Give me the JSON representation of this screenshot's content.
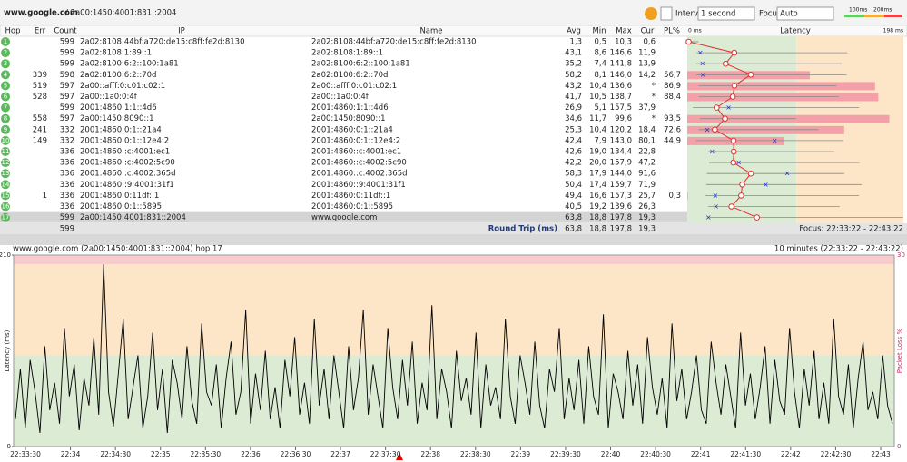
{
  "header": {
    "host": "www.google.com",
    "address": "/ 2a00:1450:4001:831::2004",
    "interval_label": "Interval",
    "interval": "1 second",
    "focus_label": "Focus",
    "focus": "Auto",
    "scale": [
      "100ms",
      "200ms"
    ]
  },
  "table": {
    "columns": [
      "Hop",
      "Err",
      "Count",
      "IP",
      "Name",
      "Avg",
      "Min",
      "Max",
      "Cur",
      "PL%",
      "Latency"
    ],
    "latency_scale": [
      "0 ms",
      "198 ms"
    ],
    "rows": [
      [
        1,
        null,
        599,
        "2a02:8108:44bf:a720:de15:c8ff:fe2d:8130",
        "2a02:8108:44bf:a720:de15:c8ff:fe2d:8130",
        "1,3",
        "0,5",
        "10,3",
        "0,6",
        null
      ],
      [
        2,
        null,
        599,
        "2a02:8108:1:89::1",
        "2a02:8108:1:89::1",
        "43,1",
        "8,6",
        "146,6",
        "11,9",
        null
      ],
      [
        3,
        null,
        599,
        "2a02:8100:6:2::100:1a81",
        "2a02:8100:6:2::100:1a81",
        "35,2",
        "7,4",
        "141,8",
        "13,9",
        null
      ],
      [
        4,
        339,
        598,
        "2a02:8100:6:2::70d",
        "2a02:8100:6:2::70d",
        "58,2",
        "8,1",
        "146,0",
        "14,2",
        "56,7"
      ],
      [
        5,
        519,
        597,
        "2a00::afff:0:c01:c02:1",
        "2a00::afff:0:c01:c02:1",
        "43,2",
        "10,4",
        "136,6",
        "*",
        "86,9"
      ],
      [
        6,
        528,
        597,
        "2a00::1a0:0:4f",
        "2a00::1a0:0:4f",
        "41,7",
        "10,5",
        "138,7",
        "*",
        "88,4"
      ],
      [
        7,
        null,
        599,
        "2001:4860:1:1::4d6",
        "2001:4860:1:1::4d6",
        "26,9",
        "5,1",
        "157,5",
        "37,9",
        null
      ],
      [
        8,
        558,
        597,
        "2a00:1450:8090::1",
        "2a00:1450:8090::1",
        "34,6",
        "11,7",
        "99,6",
        "*",
        "93,5"
      ],
      [
        9,
        241,
        332,
        "2001:4860:0:1::21a4",
        "2001:4860:0:1::21a4",
        "25,3",
        "10,4",
        "120,2",
        "18,4",
        "72,6"
      ],
      [
        10,
        149,
        332,
        "2001:4860:0:1::12e4:2",
        "2001:4860:0:1::12e4:2",
        "42,4",
        "7,9",
        "143,0",
        "80,1",
        "44,9"
      ],
      [
        11,
        null,
        336,
        "2001:4860::c:4001:ec1",
        "2001:4860::c:4001:ec1",
        "42,6",
        "19,0",
        "134,4",
        "22,8",
        null
      ],
      [
        12,
        null,
        336,
        "2001:4860::c:4002:5c90",
        "2001:4860::c:4002:5c90",
        "42,2",
        "20,0",
        "157,9",
        "47,2",
        null
      ],
      [
        13,
        null,
        336,
        "2001:4860::c:4002:365d",
        "2001:4860::c:4002:365d",
        "58,3",
        "17,9",
        "144,0",
        "91,6",
        null
      ],
      [
        14,
        null,
        336,
        "2001:4860::9:4001:31f1",
        "2001:4860::9:4001:31f1",
        "50,4",
        "17,4",
        "159,7",
        "71,9",
        null
      ],
      [
        15,
        1,
        336,
        "2001:4860:0:11df::1",
        "2001:4860:0:11df::1",
        "49,4",
        "16,6",
        "157,3",
        "25,7",
        "0,3"
      ],
      [
        16,
        null,
        336,
        "2001:4860:0:1::5895",
        "2001:4860:0:1::5895",
        "40,5",
        "19,2",
        "139,6",
        "26,3",
        null
      ],
      [
        17,
        null,
        599,
        "2a00:1450:4001:831::2004",
        "www.google.com",
        "63,8",
        "18,8",
        "197,8",
        "19,3",
        null
      ]
    ],
    "summary": {
      "count": 599,
      "label": "Round Trip (ms)",
      "avg": "63,8",
      "min": "18,8",
      "max": "197,8",
      "cur": "19,3"
    },
    "focus": "Focus: 22:33:22 - 22:43:22"
  },
  "chart_data": {
    "type": "line",
    "title": "www.google.com (2a00:1450:4001:831::2004) hop 17",
    "subtitle": "10 minutes (22:33:22 - 22:43:22)",
    "y_label": "Latency (ms)",
    "y2_label": "Packet Loss %",
    "ylim": [
      0,
      210
    ],
    "yticks": [
      0,
      210
    ],
    "y2lim": [
      0,
      30
    ],
    "y2ticks": [
      0,
      30
    ],
    "zones": [
      {
        "from": 0,
        "to": 100,
        "color": "#dcebd4"
      },
      {
        "from": 100,
        "to": 200,
        "color": "#fde6c8"
      },
      {
        "from": 200,
        "to": 210,
        "color": "#f8cccc"
      }
    ],
    "xticks": [
      "22:33:30",
      "22:34",
      "22:34:30",
      "22:35",
      "22:35:30",
      "22:36",
      "22:36:30",
      "22:37",
      "22:37:30",
      "22:38",
      "22:38:30",
      "22:39",
      "22:39:30",
      "22:40",
      "22:40:30",
      "22:41",
      "22:41:30",
      "22:42",
      "22:42:30",
      "22:43"
    ],
    "color": "#000000",
    "values": [
      30,
      85,
      20,
      95,
      60,
      15,
      110,
      40,
      70,
      25,
      130,
      55,
      90,
      18,
      75,
      45,
      120,
      35,
      200,
      60,
      22,
      80,
      140,
      30,
      65,
      100,
      20,
      55,
      125,
      40,
      85,
      15,
      95,
      70,
      30,
      110,
      50,
      25,
      135,
      60,
      45,
      90,
      20,
      75,
      115,
      35,
      60,
      150,
      25,
      80,
      40,
      105,
      30,
      65,
      20,
      95,
      55,
      120,
      35,
      70,
      25,
      140,
      45,
      85,
      30,
      100,
      60,
      20,
      110,
      40,
      75,
      150,
      35,
      90,
      55,
      20,
      130,
      65,
      30,
      95,
      45,
      115,
      25,
      70,
      40,
      155,
      30,
      85,
      60,
      20,
      105,
      50,
      75,
      35,
      125,
      20,
      90,
      45,
      65,
      30,
      140,
      55,
      25,
      100,
      70,
      35,
      115,
      45,
      20,
      85,
      60,
      130,
      30,
      75,
      40,
      95,
      25,
      110,
      55,
      35,
      145,
      20,
      80,
      60,
      30,
      105,
      45,
      90,
      25,
      120,
      65,
      35,
      75,
      20,
      135,
      50,
      85,
      30,
      60,
      100,
      40,
      25,
      115,
      70,
      35,
      90,
      55,
      20,
      125,
      45,
      80,
      30,
      65,
      110,
      25,
      95,
      50,
      35,
      130,
      60,
      20,
      85,
      45,
      105,
      30,
      70,
      25,
      140,
      55,
      35,
      90,
      20,
      75,
      115,
      40,
      60,
      30,
      100,
      45,
      25
    ]
  }
}
